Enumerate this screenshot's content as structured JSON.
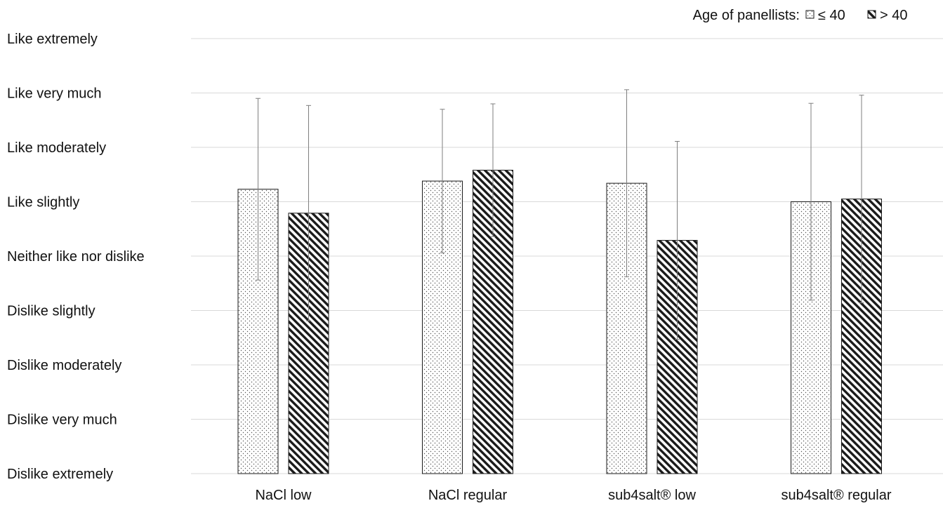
{
  "chart_data": {
    "type": "bar",
    "title": "",
    "xlabel": "",
    "ylabel": "",
    "y_scale_labels": [
      "Dislike extremely",
      "Dislike very much",
      "Dislike moderately",
      "Dislike slightly",
      "Neither like nor dislike",
      "Like slightly",
      "Like moderately",
      "Like very much",
      "Like extremely"
    ],
    "ylim": [
      1,
      9
    ],
    "grid": true,
    "legend": {
      "title": "Age of panellists:",
      "placement": "top-right"
    },
    "categories": [
      "NaCl low",
      "NaCl regular",
      "sub4salt® low",
      "sub4salt® regular"
    ],
    "series": [
      {
        "name": "≤ 40",
        "pattern": "dots",
        "values": [
          6.23,
          6.38,
          6.34,
          6.0
        ],
        "error": [
          1.67,
          1.32,
          1.72,
          1.81
        ]
      },
      {
        "name": "> 40",
        "pattern": "hatch",
        "values": [
          5.79,
          6.58,
          5.29,
          6.05
        ],
        "error": [
          1.98,
          1.22,
          1.82,
          1.91
        ]
      }
    ],
    "colors": {
      "bar_edge": "#1a1a1a",
      "gridline": "#d9d9d9",
      "error_bar": "#7f7f7f",
      "text": "#111111"
    }
  }
}
